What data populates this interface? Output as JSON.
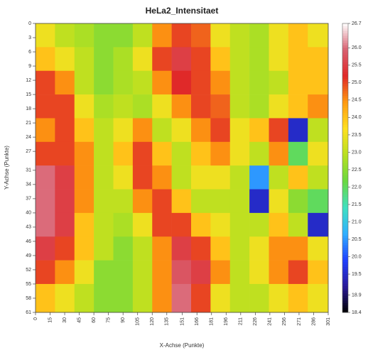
{
  "chart_data": {
    "type": "heatmap",
    "title": "HeLa2_Intensitaet",
    "x_label": "X-Achse (Punkte)",
    "y_label": "Y-Achse (Punkte)",
    "x": [
      10,
      30,
      50,
      70,
      90,
      110,
      130,
      150,
      170,
      190,
      210,
      230,
      250,
      270,
      290
    ],
    "y": [
      2.5,
      7.5,
      12.5,
      17.5,
      22.5,
      27.5,
      32.5,
      37.5,
      42.5,
      47.5,
      52.5,
      57.5
    ],
    "values": [
      [
        23.5,
        23,
        22.8,
        22.5,
        22.5,
        23,
        24.5,
        25,
        24.8,
        23.5,
        23,
        22.8,
        23.5,
        24,
        23.5
      ],
      [
        24,
        23.5,
        23,
        22.5,
        22.8,
        23.5,
        25,
        25.5,
        25,
        24,
        23,
        22.8,
        23.5,
        24,
        24
      ],
      [
        25,
        24.5,
        23,
        22.5,
        22.8,
        23,
        24.5,
        25.2,
        25,
        24.5,
        23,
        22.8,
        23,
        24,
        24
      ],
      [
        25,
        25,
        23.5,
        22.8,
        23,
        22.8,
        23.5,
        24.5,
        25,
        24.8,
        23,
        22.8,
        23.5,
        24,
        24.5
      ],
      [
        24.5,
        25,
        24,
        23,
        23.5,
        24.5,
        23,
        23.5,
        24.5,
        25,
        23.5,
        24,
        25,
        19.5,
        23
      ],
      [
        25,
        25,
        24.5,
        23,
        24,
        25,
        24,
        23,
        24,
        24.5,
        23.5,
        23,
        24.5,
        22,
        23.5
      ],
      [
        26,
        25.5,
        24.5,
        23,
        23.5,
        25,
        24.5,
        23,
        23.5,
        23.5,
        23,
        20.5,
        23,
        24,
        23
      ],
      [
        26,
        25.5,
        24.5,
        23,
        23,
        24.5,
        25,
        24,
        23,
        23,
        23,
        19.5,
        23.5,
        22.5,
        22
      ],
      [
        26,
        25.5,
        24,
        23,
        22.8,
        23.5,
        25,
        25,
        24,
        23.5,
        23,
        23,
        24,
        23,
        19.5
      ],
      [
        25.5,
        25,
        24,
        23,
        22.5,
        23,
        24.5,
        25.5,
        25,
        24,
        23,
        23.5,
        24.5,
        24.5,
        23.5
      ],
      [
        25,
        24.5,
        23.5,
        22.5,
        22.5,
        23,
        24.5,
        25.8,
        25.5,
        24.5,
        23,
        23.5,
        24.5,
        25,
        24
      ],
      [
        24,
        23.5,
        23,
        22.5,
        22.5,
        23,
        24.5,
        26,
        25,
        23.5,
        23,
        23,
        23.5,
        24,
        23.5
      ]
    ],
    "xlim": [
      0,
      301
    ],
    "ylim": [
      0,
      61
    ],
    "y_inverted": true,
    "xticks": [
      0,
      15,
      30,
      45,
      60,
      75,
      90,
      105,
      120,
      135,
      151,
      166,
      181,
      196,
      211,
      226,
      241,
      256,
      271,
      286,
      301
    ],
    "yticks": [
      0,
      3,
      6,
      9,
      12,
      15,
      18,
      21,
      24,
      27,
      31,
      34,
      37,
      40,
      43,
      46,
      49,
      52,
      55,
      58,
      61
    ],
    "clim": [
      18.4,
      26.7
    ],
    "cticks": [
      18.4,
      18.9,
      19.5,
      {
        "value": 20,
        "label": "20.0"
      },
      20.5,
      {
        "value": 21,
        "label": "21.0"
      },
      21.5,
      {
        "value": 22,
        "label": "22.0"
      },
      22.5,
      {
        "value": 23,
        "label": "23.0"
      },
      23.5,
      {
        "value": 24,
        "label": "24.0"
      },
      24.5,
      {
        "value": 25,
        "label": "25.0"
      },
      25.5,
      {
        "value": 26,
        "label": "26.0"
      },
      26.7
    ],
    "colorscale": [
      "#000000",
      "#2a1a9a",
      "#2040ff",
      "#30b0ff",
      "#40e0c0",
      "#6ad840",
      "#b8e020",
      "#ffe020",
      "#ff9a10",
      "#e02828",
      "#d86070",
      "#ffffff"
    ]
  }
}
